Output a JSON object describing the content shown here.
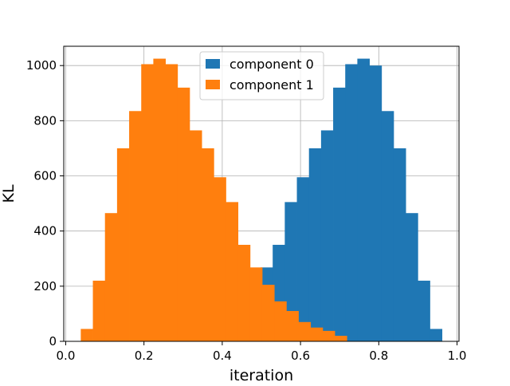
{
  "chart_data": {
    "type": "bar",
    "xlabel": "iteration",
    "ylabel": "KL",
    "xlim": [
      -0.005,
      1.005
    ],
    "ylim": [
      0,
      1070
    ],
    "xticks": [
      "0.0",
      "0.2",
      "0.4",
      "0.6",
      "0.8",
      "1.0"
    ],
    "yticks": [
      "0",
      "200",
      "400",
      "600",
      "800",
      "1000"
    ],
    "grid": true,
    "legend_position": "upper center",
    "series": [
      {
        "name": "component 0",
        "color": "#1f77b4",
        "bin_edges": [
          0.498,
          0.5289,
          0.5598,
          0.5907,
          0.6216,
          0.6525,
          0.6834,
          0.7143,
          0.7452,
          0.7761,
          0.807,
          0.8379,
          0.8688,
          0.8997,
          0.9306,
          0.9615
        ],
        "values": [
          268,
          350,
          505,
          595,
          700,
          765,
          920,
          1005,
          1025,
          1000,
          835,
          700,
          465,
          220,
          45
        ]
      },
      {
        "name": "component 1",
        "color": "#ff7f0e",
        "bin_edges": [
          0.0385,
          0.0694,
          0.1003,
          0.1312,
          0.1621,
          0.193,
          0.2239,
          0.2548,
          0.2857,
          0.3166,
          0.3475,
          0.3784,
          0.4093,
          0.4402,
          0.4711,
          0.502,
          0.5329,
          0.5638,
          0.5947,
          0.6256,
          0.6565,
          0.6874,
          0.7183
        ],
        "values": [
          45,
          220,
          465,
          700,
          835,
          1005,
          1025,
          1005,
          920,
          765,
          700,
          595,
          505,
          350,
          268,
          205,
          145,
          110,
          70,
          50,
          38,
          20
        ]
      }
    ]
  }
}
